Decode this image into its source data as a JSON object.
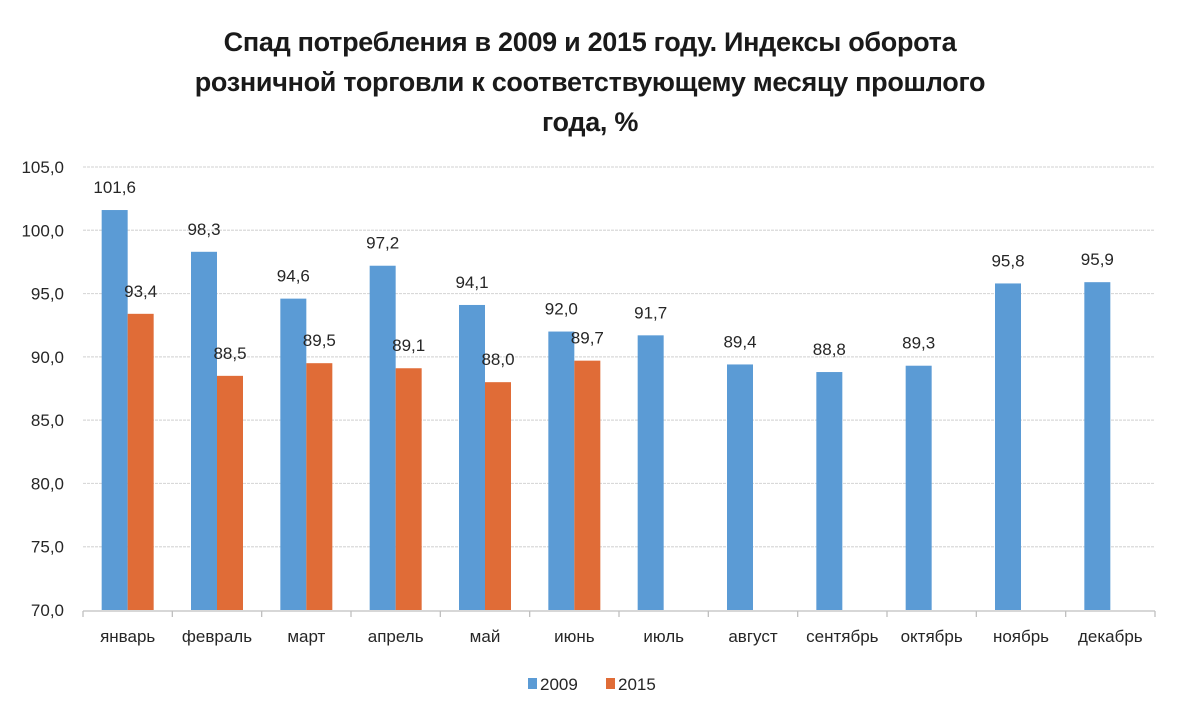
{
  "chart_data": {
    "type": "bar",
    "title": "Спад потребления в 2009 и 2015 году. Индексы оборота розничной торговли к соответствующему месяцу прошлого года, %",
    "title_lines": [
      "Спад потребления в 2009 и 2015 году. Индексы оборота",
      "розничной торговли к соответствующему месяцу прошлого",
      "года, %"
    ],
    "xlabel": "",
    "ylabel": "",
    "ylim": [
      70,
      105
    ],
    "yticks": [
      70,
      75,
      80,
      85,
      90,
      95,
      100,
      105
    ],
    "ytick_labels": [
      "70,0",
      "75,0",
      "80,0",
      "85,0",
      "90,0",
      "95,0",
      "100,0",
      "105,0"
    ],
    "grid": true,
    "legend_position": "bottom",
    "categories": [
      "январь",
      "февраль",
      "март",
      "апрель",
      "май",
      "июнь",
      "июль",
      "август",
      "сентябрь",
      "октябрь",
      "ноябрь",
      "декабрь"
    ],
    "series": [
      {
        "name": "2009",
        "color": "#5b9bd5",
        "values": [
          101.6,
          98.3,
          94.6,
          97.2,
          94.1,
          92.0,
          91.7,
          89.4,
          88.8,
          89.3,
          95.8,
          95.9
        ],
        "labels": [
          "101,6",
          "98,3",
          "94,6",
          "97,2",
          "94,1",
          "92,0",
          "91,7",
          "89,4",
          "88,8",
          "89,3",
          "95,8",
          "95,9"
        ]
      },
      {
        "name": "2015",
        "color": "#e06c37",
        "values": [
          93.4,
          88.5,
          89.5,
          89.1,
          88.0,
          89.7,
          null,
          null,
          null,
          null,
          null,
          null
        ],
        "labels": [
          "93,4",
          "88,5",
          "89,5",
          "89,1",
          "88,0",
          "89,7",
          null,
          null,
          null,
          null,
          null,
          null
        ]
      }
    ]
  }
}
